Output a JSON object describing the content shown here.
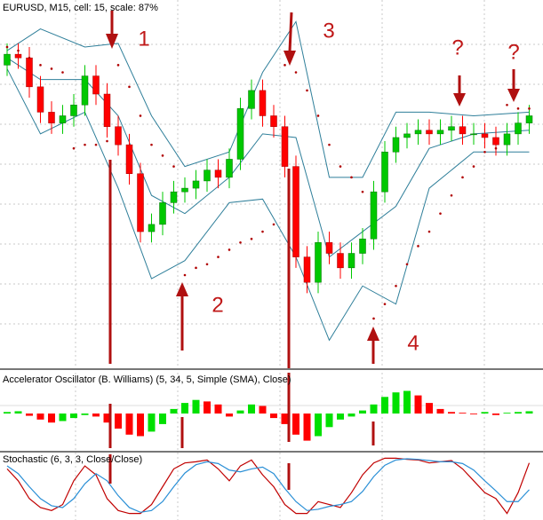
{
  "chart_data": [
    {
      "type": "candlestick",
      "title": "EURUSD, M15, cell: 15, scale: 87%",
      "ylim": [
        0,
        100
      ],
      "open": [
        83,
        86,
        85,
        77,
        70,
        67,
        69,
        72,
        80,
        75,
        66,
        61,
        53,
        37,
        39,
        45,
        48,
        49,
        51,
        54,
        52,
        57,
        71,
        76,
        69,
        66,
        55,
        30,
        23,
        34,
        31,
        27,
        31,
        35,
        48,
        59,
        63,
        64,
        65,
        64,
        65,
        66,
        64,
        64,
        63,
        61,
        64,
        67
      ],
      "high": [
        89,
        89,
        88,
        80,
        73,
        72,
        75,
        83,
        83,
        78,
        69,
        64,
        56,
        42,
        48,
        51,
        52,
        54,
        57,
        57,
        60,
        74,
        79,
        79,
        72,
        69,
        58,
        33,
        37,
        37,
        34,
        34,
        38,
        51,
        62,
        66,
        67,
        68,
        68,
        68,
        69,
        69,
        67,
        67,
        66,
        67,
        70,
        72
      ],
      "low": [
        80,
        82,
        74,
        67,
        64,
        64,
        66,
        69,
        72,
        63,
        58,
        50,
        34,
        34,
        36,
        42,
        45,
        46,
        48,
        49,
        49,
        54,
        68,
        66,
        63,
        52,
        27,
        20,
        20,
        28,
        24,
        24,
        28,
        32,
        45,
        56,
        60,
        61,
        61,
        61,
        62,
        61,
        61,
        60,
        58,
        58,
        61,
        64
      ],
      "close": [
        86,
        85,
        77,
        70,
        67,
        69,
        72,
        80,
        75,
        66,
        61,
        53,
        37,
        39,
        45,
        48,
        49,
        51,
        54,
        52,
        57,
        71,
        76,
        69,
        66,
        55,
        30,
        23,
        34,
        31,
        27,
        31,
        35,
        48,
        59,
        63,
        64,
        65,
        64,
        65,
        66,
        64,
        64,
        63,
        61,
        64,
        67,
        69
      ],
      "up_color": "#00c800",
      "down_color": "#ff0000",
      "bands": {
        "color": "#2f7f9a",
        "x": [
          0,
          3,
          7,
          10,
          13,
          16,
          20,
          23,
          26,
          29,
          32,
          35,
          38,
          42,
          47
        ],
        "upper": [
          87,
          93,
          88,
          89,
          69,
          55,
          59,
          81,
          95,
          52,
          52,
          70,
          70,
          69,
          70
        ],
        "middle": [
          85,
          79,
          79,
          69,
          47,
          42,
          52,
          64,
          63,
          30,
          37,
          44,
          60,
          64,
          65
        ],
        "lower": [
          82,
          64,
          70,
          49,
          24,
          29,
          45,
          46,
          30,
          7,
          22,
          17,
          49,
          59,
          59
        ]
      },
      "sar_color": "#b00000",
      "sar": [
        88,
        87,
        85,
        83,
        82,
        81,
        60,
        61,
        61,
        62,
        83,
        77,
        69,
        61,
        58,
        55,
        25,
        27,
        28,
        30,
        32,
        34,
        35,
        37,
        39,
        83,
        81,
        76,
        69,
        61,
        55,
        52,
        48,
        13,
        17,
        22,
        28,
        33,
        37,
        42,
        47,
        52,
        55,
        59,
        60,
        72,
        71,
        71
      ],
      "annotations": [
        "1",
        "2",
        "3",
        "4",
        "?",
        "?"
      ]
    },
    {
      "type": "bar",
      "title": "Accelerator Oscillator (B. Williams) (5, 34, 5, Simple (SMA), Close)",
      "ylim": [
        -40,
        40
      ],
      "up_color": "#00e000",
      "down_color": "#ff0000",
      "values": [
        2,
        3,
        -3,
        -8,
        -12,
        -10,
        -6,
        -2,
        -4,
        -12,
        -20,
        -28,
        -30,
        -24,
        -14,
        6,
        14,
        18,
        16,
        12,
        -4,
        4,
        12,
        10,
        -6,
        -14,
        -28,
        -36,
        -30,
        -18,
        -8,
        -4,
        4,
        12,
        22,
        28,
        30,
        24,
        14,
        6,
        2,
        1,
        -1,
        2,
        -2,
        1,
        2,
        3
      ]
    },
    {
      "type": "line",
      "title": "Stochastic (6, 3, 3, Close/Close)",
      "ylim": [
        0,
        100
      ],
      "series": [
        {
          "color": "#c00000",
          "values": [
            80,
            60,
            30,
            15,
            10,
            20,
            60,
            85,
            70,
            30,
            10,
            5,
            5,
            20,
            50,
            80,
            90,
            92,
            95,
            80,
            60,
            85,
            95,
            70,
            50,
            20,
            5,
            5,
            25,
            20,
            15,
            40,
            70,
            90,
            98,
            98,
            96,
            95,
            90,
            92,
            94,
            80,
            60,
            40,
            30,
            5,
            40,
            90
          ]
        },
        {
          "color": "#2a8fd6",
          "values": [
            85,
            72,
            50,
            30,
            18,
            15,
            30,
            55,
            72,
            60,
            35,
            15,
            7,
            10,
            25,
            50,
            73,
            87,
            92,
            89,
            78,
            75,
            80,
            83,
            72,
            47,
            25,
            10,
            12,
            17,
            20,
            25,
            42,
            67,
            86,
            95,
            97,
            96,
            94,
            92,
            92,
            89,
            78,
            60,
            43,
            25,
            25,
            45
          ]
        }
      ]
    }
  ]
}
